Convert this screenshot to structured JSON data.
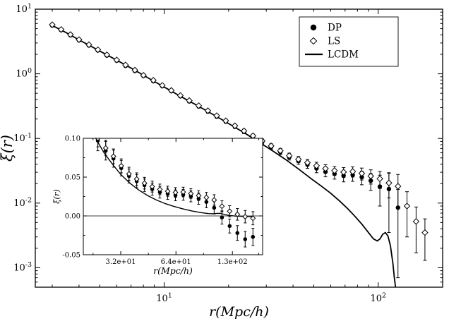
{
  "colors": {
    "foreground": "#000000",
    "background": "#ffffff"
  },
  "chart_data": [
    {
      "id": "main",
      "type": "scatter",
      "xscale": "log",
      "yscale": "log",
      "xlim": [
        2.5,
        200
      ],
      "ylim": [
        0.0005,
        10
      ],
      "xlabel": "r(Mpc/h)",
      "ylabel": "ξ(r)",
      "x_ticks": [
        {
          "v": 10,
          "exp": "1"
        },
        {
          "v": 100,
          "exp": "2"
        }
      ],
      "y_ticks": [
        {
          "v": 10,
          "exp": "1"
        },
        {
          "v": 1,
          "exp": "0"
        },
        {
          "v": 0.1,
          "exp": "-1"
        },
        {
          "v": 0.01,
          "exp": "-2"
        },
        {
          "v": 0.001,
          "exp": "-3"
        }
      ],
      "legend": {
        "entries": [
          "DP",
          "LS",
          "LCDM"
        ]
      },
      "series": [
        {
          "name": "DP",
          "kind": "scatter",
          "marker": "circle",
          "r": [
            3.0,
            3.3,
            3.65,
            4.0,
            4.45,
            4.9,
            5.4,
            6.0,
            6.6,
            7.3,
            8.0,
            8.9,
            9.8,
            10.8,
            11.9,
            13.1,
            14.5,
            16.0,
            17.6,
            19.4,
            21.4,
            23.6,
            26.0,
            28.7,
            31.6,
            34.9,
            38.4,
            42.4,
            46.7,
            51.5,
            56.7,
            62.5,
            68.9,
            76.0,
            83.8,
            92.3,
            101.8,
            112.2,
            123.7
          ],
          "xi": [
            5.6,
            4.75,
            3.95,
            3.3,
            2.75,
            2.3,
            1.92,
            1.6,
            1.33,
            1.11,
            0.93,
            0.77,
            0.645,
            0.54,
            0.45,
            0.375,
            0.313,
            0.261,
            0.218,
            0.182,
            0.152,
            0.127,
            0.106,
            0.0885,
            0.0738,
            0.0616,
            0.0514,
            0.0448,
            0.0395,
            0.0345,
            0.0305,
            0.0285,
            0.0265,
            0.0272,
            0.0252,
            0.0222,
            0.018,
            0.0165,
            0.0085
          ],
          "err": [
            0.25,
            0.21,
            0.18,
            0.15,
            0.13,
            0.11,
            0.09,
            0.075,
            0.062,
            0.052,
            0.044,
            0.037,
            0.031,
            0.026,
            0.022,
            0.019,
            0.016,
            0.014,
            0.012,
            0.01,
            0.009,
            0.008,
            0.007,
            0.0065,
            0.006,
            0.0055,
            0.005,
            0.005,
            0.005,
            0.005,
            0.005,
            0.005,
            0.0052,
            0.0055,
            0.006,
            0.0065,
            0.009,
            0.013,
            0.0078
          ]
        },
        {
          "name": "LS",
          "kind": "scatter",
          "marker": "diamond",
          "r": [
            3.0,
            3.3,
            3.65,
            4.0,
            4.45,
            4.9,
            5.4,
            6.0,
            6.6,
            7.3,
            8.0,
            8.9,
            9.8,
            10.8,
            11.9,
            13.1,
            14.5,
            16.0,
            17.6,
            19.4,
            21.4,
            23.6,
            26.0,
            28.7,
            31.6,
            34.9,
            38.4,
            42.4,
            46.7,
            51.5,
            56.7,
            62.5,
            68.9,
            76.0,
            83.8,
            92.3,
            101.8,
            112.2,
            123.7,
            136.3,
            150.3,
            165.3
          ],
          "xi": [
            5.75,
            4.85,
            4.05,
            3.38,
            2.82,
            2.36,
            1.97,
            1.64,
            1.37,
            1.14,
            0.95,
            0.795,
            0.663,
            0.554,
            0.462,
            0.386,
            0.322,
            0.269,
            0.225,
            0.188,
            0.157,
            0.131,
            0.11,
            0.0918,
            0.0768,
            0.0645,
            0.0542,
            0.0475,
            0.0422,
            0.0378,
            0.0342,
            0.0318,
            0.0302,
            0.0308,
            0.0288,
            0.0262,
            0.0238,
            0.0205,
            0.0182,
            0.009,
            0.0052,
            0.0035
          ],
          "err": [
            0.26,
            0.22,
            0.18,
            0.15,
            0.13,
            0.11,
            0.09,
            0.076,
            0.063,
            0.053,
            0.045,
            0.038,
            0.032,
            0.027,
            0.023,
            0.019,
            0.016,
            0.014,
            0.012,
            0.01,
            0.009,
            0.008,
            0.007,
            0.0065,
            0.006,
            0.0055,
            0.005,
            0.005,
            0.005,
            0.005,
            0.005,
            0.005,
            0.0052,
            0.0055,
            0.006,
            0.0065,
            0.007,
            0.0085,
            0.0095,
            0.006,
            0.0035,
            0.0022
          ]
        },
        {
          "name": "LCDM",
          "kind": "line",
          "r": [
            3.0,
            3.5,
            4.0,
            4.6,
            5.3,
            6.1,
            7.0,
            8.0,
            9.2,
            10.6,
            12.2,
            14.0,
            16.1,
            18.5,
            21.2,
            24.4,
            28.0,
            32.2,
            37.0,
            42.5,
            48.9,
            54.0,
            60.0,
            66.0,
            72.0,
            78.0,
            84.0,
            90.0,
            95.0,
            99.0,
            102.0,
            105.0,
            108.0,
            111.0,
            114.0,
            117.0,
            119.0,
            121.0,
            123.0
          ],
          "xi": [
            5.6,
            4.3,
            3.35,
            2.62,
            2.03,
            1.58,
            1.23,
            0.95,
            0.73,
            0.56,
            0.43,
            0.335,
            0.258,
            0.198,
            0.152,
            0.115,
            0.086,
            0.064,
            0.047,
            0.0335,
            0.0235,
            0.0185,
            0.0142,
            0.0108,
            0.0082,
            0.0062,
            0.0047,
            0.0035,
            0.0028,
            0.0026,
            0.0028,
            0.0033,
            0.0035,
            0.0031,
            0.0022,
            0.0012,
            0.0007,
            0.00045,
            0.0003
          ]
        }
      ]
    },
    {
      "id": "inset",
      "type": "scatter",
      "xscale": "log",
      "yscale": "linear",
      "xlim": [
        20,
        190
      ],
      "ylim": [
        -0.05,
        0.1
      ],
      "xlabel": "r(Mpc/h)",
      "ylabel": "ξ(r)",
      "zero_line": true,
      "x_ticks": [
        {
          "v": 32,
          "label": "3.2e+01"
        },
        {
          "v": 64,
          "label": "6.4e+01"
        },
        {
          "v": 130,
          "label": "1.3e+02"
        }
      ],
      "x_minor": [
        22.6,
        45.3,
        90.5,
        181
      ],
      "y_ticks": [
        {
          "v": 0.1,
          "label": "0.10"
        },
        {
          "v": 0.05,
          "label": "0.05"
        },
        {
          "v": 0.0,
          "label": "0.00"
        },
        {
          "v": -0.05,
          "label": "-0.05"
        }
      ],
      "y_minor": [
        0.075,
        0.025,
        -0.025
      ],
      "series": [
        {
          "name": "DP",
          "kind": "scatter",
          "marker": "circle",
          "r": [
            24,
            26.5,
            29.2,
            32.2,
            35.5,
            39.1,
            43.1,
            47.5,
            52.3,
            57.7,
            63.6,
            70.1,
            77.2,
            85.1,
            93.8,
            103.4,
            114.0,
            125.6,
            138.4,
            152.6,
            168.2
          ],
          "xi": [
            0.097,
            0.084,
            0.0738,
            0.0616,
            0.0514,
            0.0448,
            0.0395,
            0.0345,
            0.0305,
            0.0285,
            0.0265,
            0.0272,
            0.0252,
            0.0222,
            0.018,
            0.0105,
            -0.002,
            -0.013,
            -0.022,
            -0.03,
            -0.027
          ],
          "err": [
            0.013,
            0.012,
            0.011,
            0.01,
            0.009,
            0.0085,
            0.008,
            0.0078,
            0.0075,
            0.0072,
            0.007,
            0.007,
            0.007,
            0.0072,
            0.0075,
            0.008,
            0.0085,
            0.009,
            0.0095,
            0.01,
            0.011
          ]
        },
        {
          "name": "LS",
          "kind": "scatter",
          "marker": "diamond",
          "r": [
            24,
            26.5,
            29.2,
            32.2,
            35.5,
            39.1,
            43.1,
            47.5,
            52.3,
            57.7,
            63.6,
            70.1,
            77.2,
            85.1,
            93.8,
            103.4,
            114.0,
            125.6,
            138.4,
            152.6,
            168.2
          ],
          "xi": [
            0.1,
            0.0875,
            0.0768,
            0.0645,
            0.0542,
            0.0475,
            0.0422,
            0.0378,
            0.0342,
            0.0318,
            0.0302,
            0.0308,
            0.0288,
            0.0262,
            0.0238,
            0.0205,
            0.0125,
            0.006,
            0.002,
            -0.001,
            -0.003
          ],
          "err": [
            0.011,
            0.01,
            0.0095,
            0.009,
            0.0085,
            0.008,
            0.0075,
            0.007,
            0.0068,
            0.0065,
            0.0063,
            0.0062,
            0.0062,
            0.0063,
            0.0065,
            0.0068,
            0.007,
            0.0072,
            0.0075,
            0.008,
            0.0085
          ]
        },
        {
          "name": "LCDM",
          "kind": "line",
          "r": [
            22,
            24,
            26,
            29,
            32,
            36,
            40,
            45,
            50,
            56,
            62,
            70,
            78,
            87,
            96,
            102,
            107,
            112,
            118,
            125,
            135,
            150,
            170
          ],
          "xi": [
            0.112,
            0.095,
            0.081,
            0.066,
            0.0535,
            0.042,
            0.0335,
            0.026,
            0.0205,
            0.0158,
            0.0125,
            0.009,
            0.0065,
            0.0044,
            0.003,
            0.0028,
            0.0033,
            0.0033,
            0.0018,
            0.0006,
            -0.0002,
            -0.0006,
            -0.0008
          ]
        }
      ]
    }
  ]
}
